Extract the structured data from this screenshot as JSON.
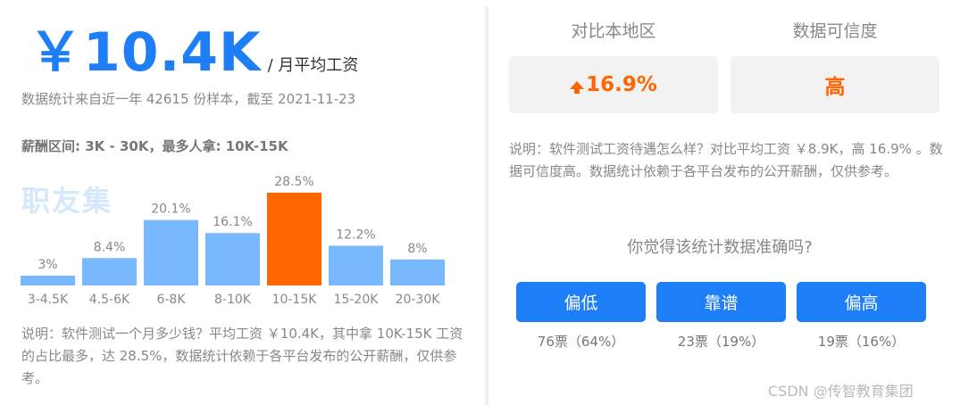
{
  "salary": {
    "main": "￥10.4K",
    "unit": "/ 月平均工资",
    "source": "数据统计来自近一年 42615 份样本，截至 2021-11-23",
    "range": "薪酬区间: 3K - 30K，最多人拿: 10K-15K",
    "watermark": "职友集",
    "note": "说明：软件测试一个月多少钱？平均工资 ￥10.4K，其中拿 10K-15K 工资的占比最多，达 28.5%，数据统计依赖于各平台发布的公开薪酬，仅供参考。"
  },
  "chart_data": {
    "type": "bar",
    "categories": [
      "3-4.5K",
      "4.5-6K",
      "6-8K",
      "8-10K",
      "10-15K",
      "15-20K",
      "20-30K"
    ],
    "values": [
      3,
      8.4,
      20.1,
      16.1,
      28.5,
      12.2,
      8
    ],
    "value_labels": [
      "3%",
      "8.4%",
      "20.1%",
      "16.1%",
      "28.5%",
      "12.2%",
      "8%"
    ],
    "unit": "%",
    "highlight_index": 4,
    "colors": {
      "normal": "#78b8ff",
      "highlight": "#ff6600"
    },
    "title": "",
    "xlabel": "",
    "ylabel": "",
    "grid": false
  },
  "compare": {
    "region_title": "对比本地区",
    "region_value": "16.9%",
    "region_icon": "arrow-up-icon",
    "credibility_title": "数据可信度",
    "credibility_value": "高",
    "note": "说明：软件测试工资待遇怎么样？对比平均工资 ￥8.9K，高 16.9% 。数据可信度高。数据统计依赖于各平台发布的公开薪酬，仅供参考。"
  },
  "poll": {
    "question": "你觉得该统计数据准确吗?",
    "options": [
      {
        "label": "偏低",
        "count": "76票（64%）"
      },
      {
        "label": "靠谱",
        "count": "23票（19%）"
      },
      {
        "label": "偏高",
        "count": "19票（16%）"
      }
    ]
  },
  "credit": "CSDN @传智教育集团",
  "colors": {
    "accent": "#1e7ef8",
    "orange": "#ff6600",
    "bar": "#78b8ff"
  }
}
